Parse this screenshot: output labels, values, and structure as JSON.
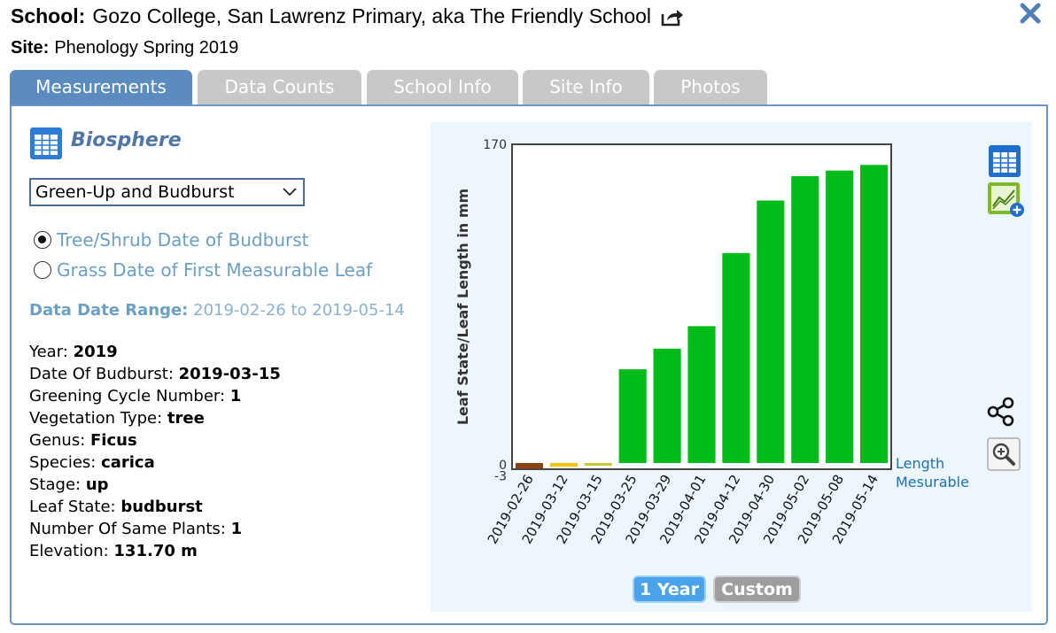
{
  "header": {
    "school_label": "School:",
    "school_name": "Gozo College, San Lawrenz Primary, aka The Friendly School",
    "share_icon": "share-out-icon",
    "close_icon": "close-icon",
    "site_label": "Site:",
    "site_name": "Phenology Spring 2019"
  },
  "tabs": [
    {
      "label": "Measurements",
      "active": true
    },
    {
      "label": "Data Counts",
      "active": false
    },
    {
      "label": "School Info",
      "active": false
    },
    {
      "label": "Site Info",
      "active": false
    },
    {
      "label": "Photos",
      "active": false
    }
  ],
  "left": {
    "protocol_icon": "table-icon",
    "protocol_title": "Biosphere",
    "dropdown_value": "Green-Up and Budburst",
    "radios": [
      {
        "label": "Tree/Shrub Date of Budburst",
        "checked": true
      },
      {
        "label": "Grass Date of First Measurable Leaf",
        "checked": false
      }
    ],
    "range_label": "Data Date Range:",
    "range_value": "2019-02-26 to 2019-05-14",
    "fields": [
      {
        "label": "Year: ",
        "value": "2019"
      },
      {
        "label": "Date Of Budburst: ",
        "value": "2019-03-15"
      },
      {
        "label": "Greening Cycle Number: ",
        "value": "1"
      },
      {
        "label": "Vegetation Type: ",
        "value": "tree"
      },
      {
        "label": "Genus: ",
        "value": "Ficus"
      },
      {
        "label": "Species: ",
        "value": "carica"
      },
      {
        "label": "Stage: ",
        "value": "up"
      },
      {
        "label": "Leaf State: ",
        "value": "budburst"
      },
      {
        "label": "Number Of Same Plants: ",
        "value": "1"
      },
      {
        "label": "Elevation: ",
        "value": "131.70 m"
      }
    ]
  },
  "chart_data": {
    "type": "bar",
    "ylabel": "Leaf State/Leaf Length in mm",
    "ylim": [
      -3,
      170
    ],
    "y_tick_labels": [
      "170",
      "0",
      "-3"
    ],
    "categories": [
      "2019-02-26",
      "2019-03-12",
      "2019-03-15",
      "2019-03-25",
      "2019-03-29",
      "2019-04-01",
      "2019-04-12",
      "2019-04-30",
      "2019-05-02",
      "2019-05-08",
      "2019-05-14"
    ],
    "values": [
      -3,
      -2,
      -1,
      50,
      61,
      73,
      112,
      140,
      153,
      156,
      159
    ],
    "bar_colors": [
      "#8b4513",
      "#f2c200",
      "#c8c832",
      "#00bb1a",
      "#00bb1a",
      "#00bb1a",
      "#00bb1a",
      "#00bb1a",
      "#00bb1a",
      "#00bb1a",
      "#00bb1a"
    ],
    "legend": [
      "Length",
      "Mesurable"
    ],
    "legend_position": "bottom-right",
    "grid": false
  },
  "chart_tools": {
    "table_icon": "table-icon",
    "add_chart_icon": "add-chart-icon",
    "share_icon": "share-icon",
    "zoom_icon": "zoom-in-icon"
  },
  "range_buttons": {
    "year_label": "1 Year",
    "custom_label": "Custom"
  }
}
